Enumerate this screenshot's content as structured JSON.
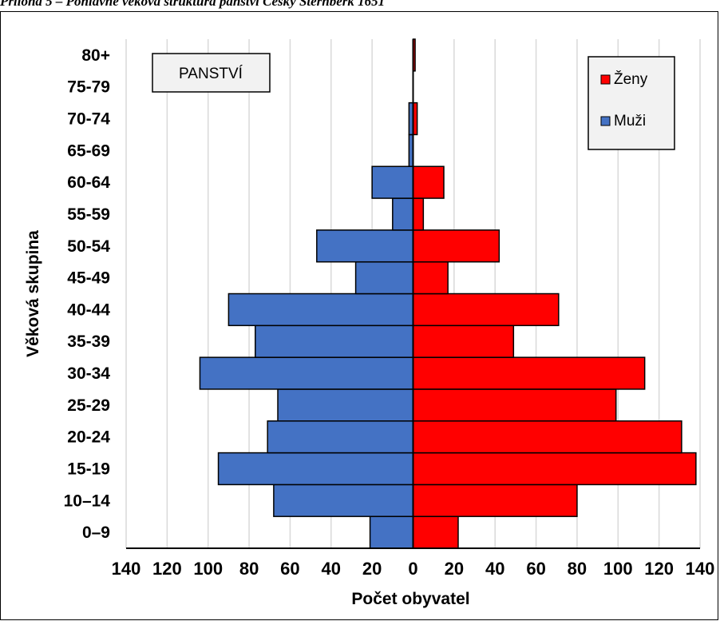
{
  "caption": "Příloha 5 – Pohlavně věková struktura panství Český Šternberk 1651",
  "chart_data": {
    "type": "bar",
    "orientation": "horizontal",
    "layout": "population-pyramid",
    "title": "",
    "inset_label": "PANSTVÍ",
    "xlabel": "Počet obyvatel",
    "ylabel": "Věková skupina",
    "categories": [
      "0–9",
      "10–14",
      "15-19",
      "20-24",
      "25-29",
      "30-34",
      "35-39",
      "40-44",
      "45-49",
      "50-54",
      "55-59",
      "60-64",
      "65-69",
      "70-74",
      "75-79",
      "80+"
    ],
    "series": [
      {
        "name": "Muži",
        "color": "#4472C4",
        "side": "left",
        "values": [
          21,
          68,
          95,
          71,
          66,
          104,
          77,
          90,
          28,
          47,
          10,
          20,
          2,
          2,
          0,
          0
        ]
      },
      {
        "name": "Ženy",
        "color": "#FF0000",
        "side": "right",
        "values": [
          22,
          80,
          138,
          131,
          99,
          113,
          49,
          71,
          17,
          42,
          5,
          15,
          0,
          2,
          0,
          1
        ]
      }
    ],
    "xlim": [
      -140,
      140
    ],
    "xticks": [
      -140,
      -120,
      -100,
      -80,
      -60,
      -40,
      -20,
      0,
      20,
      40,
      60,
      80,
      100,
      120,
      140
    ],
    "xtick_labels": [
      "140",
      "120",
      "100",
      "80",
      "60",
      "40",
      "20",
      "0",
      "20",
      "40",
      "60",
      "80",
      "100",
      "120",
      "140"
    ],
    "grid": "vertical",
    "grid_color": "#d9d9d9",
    "legend": {
      "position": "top-right",
      "order": [
        "Ženy",
        "Muži"
      ]
    }
  }
}
